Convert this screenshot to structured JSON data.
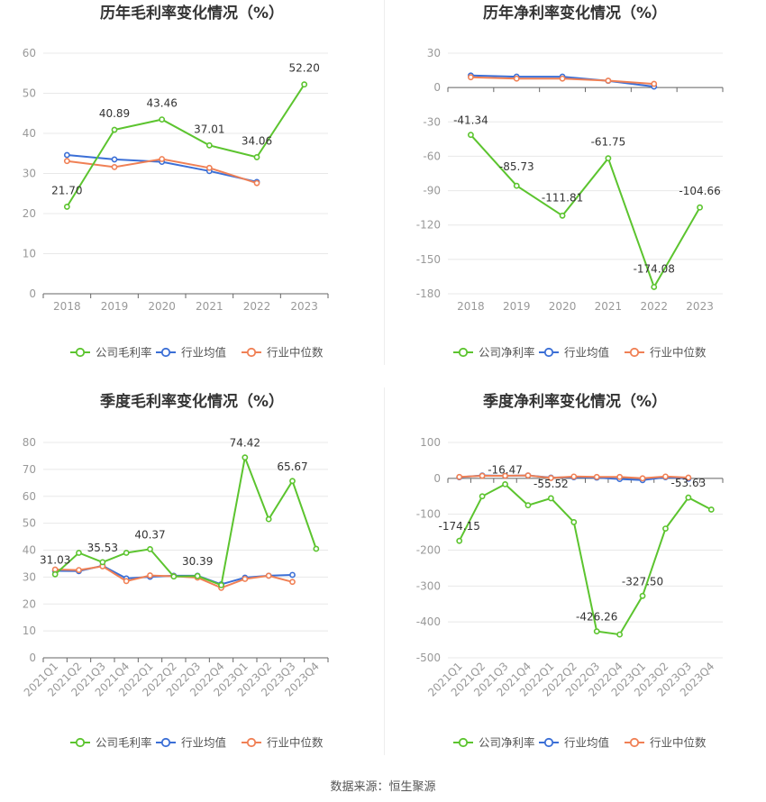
{
  "source": "数据来源：恒生聚源",
  "colors": {
    "company": "#5cc42f",
    "avg": "#3b6fd6",
    "median": "#f08055",
    "grid": "#e8e8e8",
    "axis": "#999999"
  },
  "chart_data": [
    {
      "type": "line",
      "title": "历年毛利率变化情况（%）",
      "categories": [
        "2018",
        "2019",
        "2020",
        "2021",
        "2022",
        "2023"
      ],
      "ylim": [
        0,
        60
      ],
      "yticks": [
        0,
        10,
        20,
        30,
        40,
        50,
        60
      ],
      "grid": true,
      "legend": "bottom-center",
      "series": [
        {
          "name": "公司毛利率",
          "values": [
            21.7,
            40.89,
            43.46,
            37.01,
            34.06,
            52.2
          ]
        },
        {
          "name": "行业均值",
          "values": [
            34.6,
            33.5,
            32.9,
            30.6,
            27.9,
            null
          ]
        },
        {
          "name": "行业中位数",
          "values": [
            33.1,
            31.6,
            33.6,
            31.4,
            27.6,
            null
          ]
        }
      ],
      "data_labels": [
        {
          "i": 0,
          "text": "21.70"
        },
        {
          "i": 1,
          "text": "40.89"
        },
        {
          "i": 2,
          "text": "43.46"
        },
        {
          "i": 3,
          "text": "37.01"
        },
        {
          "i": 4,
          "text": "34.06"
        },
        {
          "i": 5,
          "text": "52.20"
        }
      ]
    },
    {
      "type": "line",
      "title": "历年净利率变化情况（%）",
      "categories": [
        "2018",
        "2019",
        "2020",
        "2021",
        "2022",
        "2023"
      ],
      "ylim": [
        -180,
        30
      ],
      "yticks": [
        -180,
        -150,
        -120,
        -90,
        -60,
        -30,
        0,
        30
      ],
      "grid": true,
      "legend": "bottom-center",
      "series": [
        {
          "name": "公司净利率",
          "values": [
            -41.34,
            -85.73,
            -111.81,
            -61.75,
            -174.08,
            -104.66
          ]
        },
        {
          "name": "行业均值",
          "values": [
            10.5,
            9.5,
            9.5,
            5.8,
            0.8,
            null
          ]
        },
        {
          "name": "行业中位数",
          "values": [
            9.0,
            7.8,
            7.8,
            6.0,
            3.2,
            null
          ]
        }
      ],
      "data_labels": [
        {
          "i": 0,
          "text": "-41.34"
        },
        {
          "i": 1,
          "text": "-85.73"
        },
        {
          "i": 2,
          "text": "-111.81"
        },
        {
          "i": 3,
          "text": "-61.75"
        },
        {
          "i": 4,
          "text": "-174.08"
        },
        {
          "i": 5,
          "text": "-104.66"
        }
      ]
    },
    {
      "type": "line",
      "title": "季度毛利率变化情况（%）",
      "categories": [
        "2021Q1",
        "2021Q2",
        "2021Q3",
        "2021Q4",
        "2022Q1",
        "2022Q2",
        "2022Q3",
        "2022Q4",
        "2023Q1",
        "2023Q2",
        "2023Q3",
        "2023Q4"
      ],
      "ylim": [
        0,
        80
      ],
      "yticks": [
        0,
        10,
        20,
        30,
        40,
        50,
        60,
        70,
        80
      ],
      "grid": true,
      "legend": "bottom-center",
      "series": [
        {
          "name": "公司毛利率",
          "values": [
            31.03,
            39.0,
            35.53,
            39.0,
            40.37,
            30.2,
            30.39,
            27.0,
            74.42,
            51.5,
            65.67,
            40.5
          ]
        },
        {
          "name": "行业均值",
          "values": [
            32.3,
            32.2,
            34.2,
            29.5,
            30.1,
            30.5,
            30.5,
            27.3,
            29.8,
            30.5,
            30.8,
            null
          ]
        },
        {
          "name": "行业中位数",
          "values": [
            32.8,
            32.6,
            34.0,
            28.5,
            30.6,
            30.3,
            29.8,
            26.0,
            29.3,
            30.5,
            28.2,
            null
          ]
        }
      ],
      "data_labels": [
        {
          "i": 0,
          "text": "31.03"
        },
        {
          "i": 2,
          "text": "35.53"
        },
        {
          "i": 4,
          "text": "40.37"
        },
        {
          "i": 6,
          "text": "30.39"
        },
        {
          "i": 8,
          "text": "74.42"
        },
        {
          "i": 10,
          "text": "65.67"
        }
      ]
    },
    {
      "type": "line",
      "title": "季度净利率变化情况（%）",
      "categories": [
        "2021Q1",
        "2021Q2",
        "2021Q3",
        "2021Q4",
        "2022Q1",
        "2022Q2",
        "2022Q3",
        "2022Q4",
        "2023Q1",
        "2023Q2",
        "2023Q3",
        "2023Q4"
      ],
      "ylim": [
        -500,
        100
      ],
      "yticks": [
        -500,
        -400,
        -300,
        -200,
        -100,
        0,
        100
      ],
      "grid": true,
      "legend": "bottom-center",
      "series": [
        {
          "name": "公司净利率",
          "values": [
            -174.15,
            -50,
            -16.47,
            -75,
            -55.52,
            -122,
            -426.26,
            -435,
            -327.5,
            -140,
            -53.63,
            -87
          ]
        },
        {
          "name": "行业均值",
          "values": [
            3,
            8,
            7,
            8,
            2,
            3,
            2,
            -2,
            -5,
            3,
            -1,
            null
          ]
        },
        {
          "name": "行业中位数",
          "values": [
            4,
            7,
            7,
            8,
            1,
            5,
            4,
            4,
            0,
            5,
            2,
            null
          ]
        }
      ],
      "data_labels": [
        {
          "i": 0,
          "text": "-174.15"
        },
        {
          "i": 2,
          "text": "-16.47"
        },
        {
          "i": 4,
          "text": "-55.52"
        },
        {
          "i": 6,
          "text": "-426.26"
        },
        {
          "i": 8,
          "text": "-327.50"
        },
        {
          "i": 10,
          "text": "-53.63"
        }
      ]
    }
  ]
}
